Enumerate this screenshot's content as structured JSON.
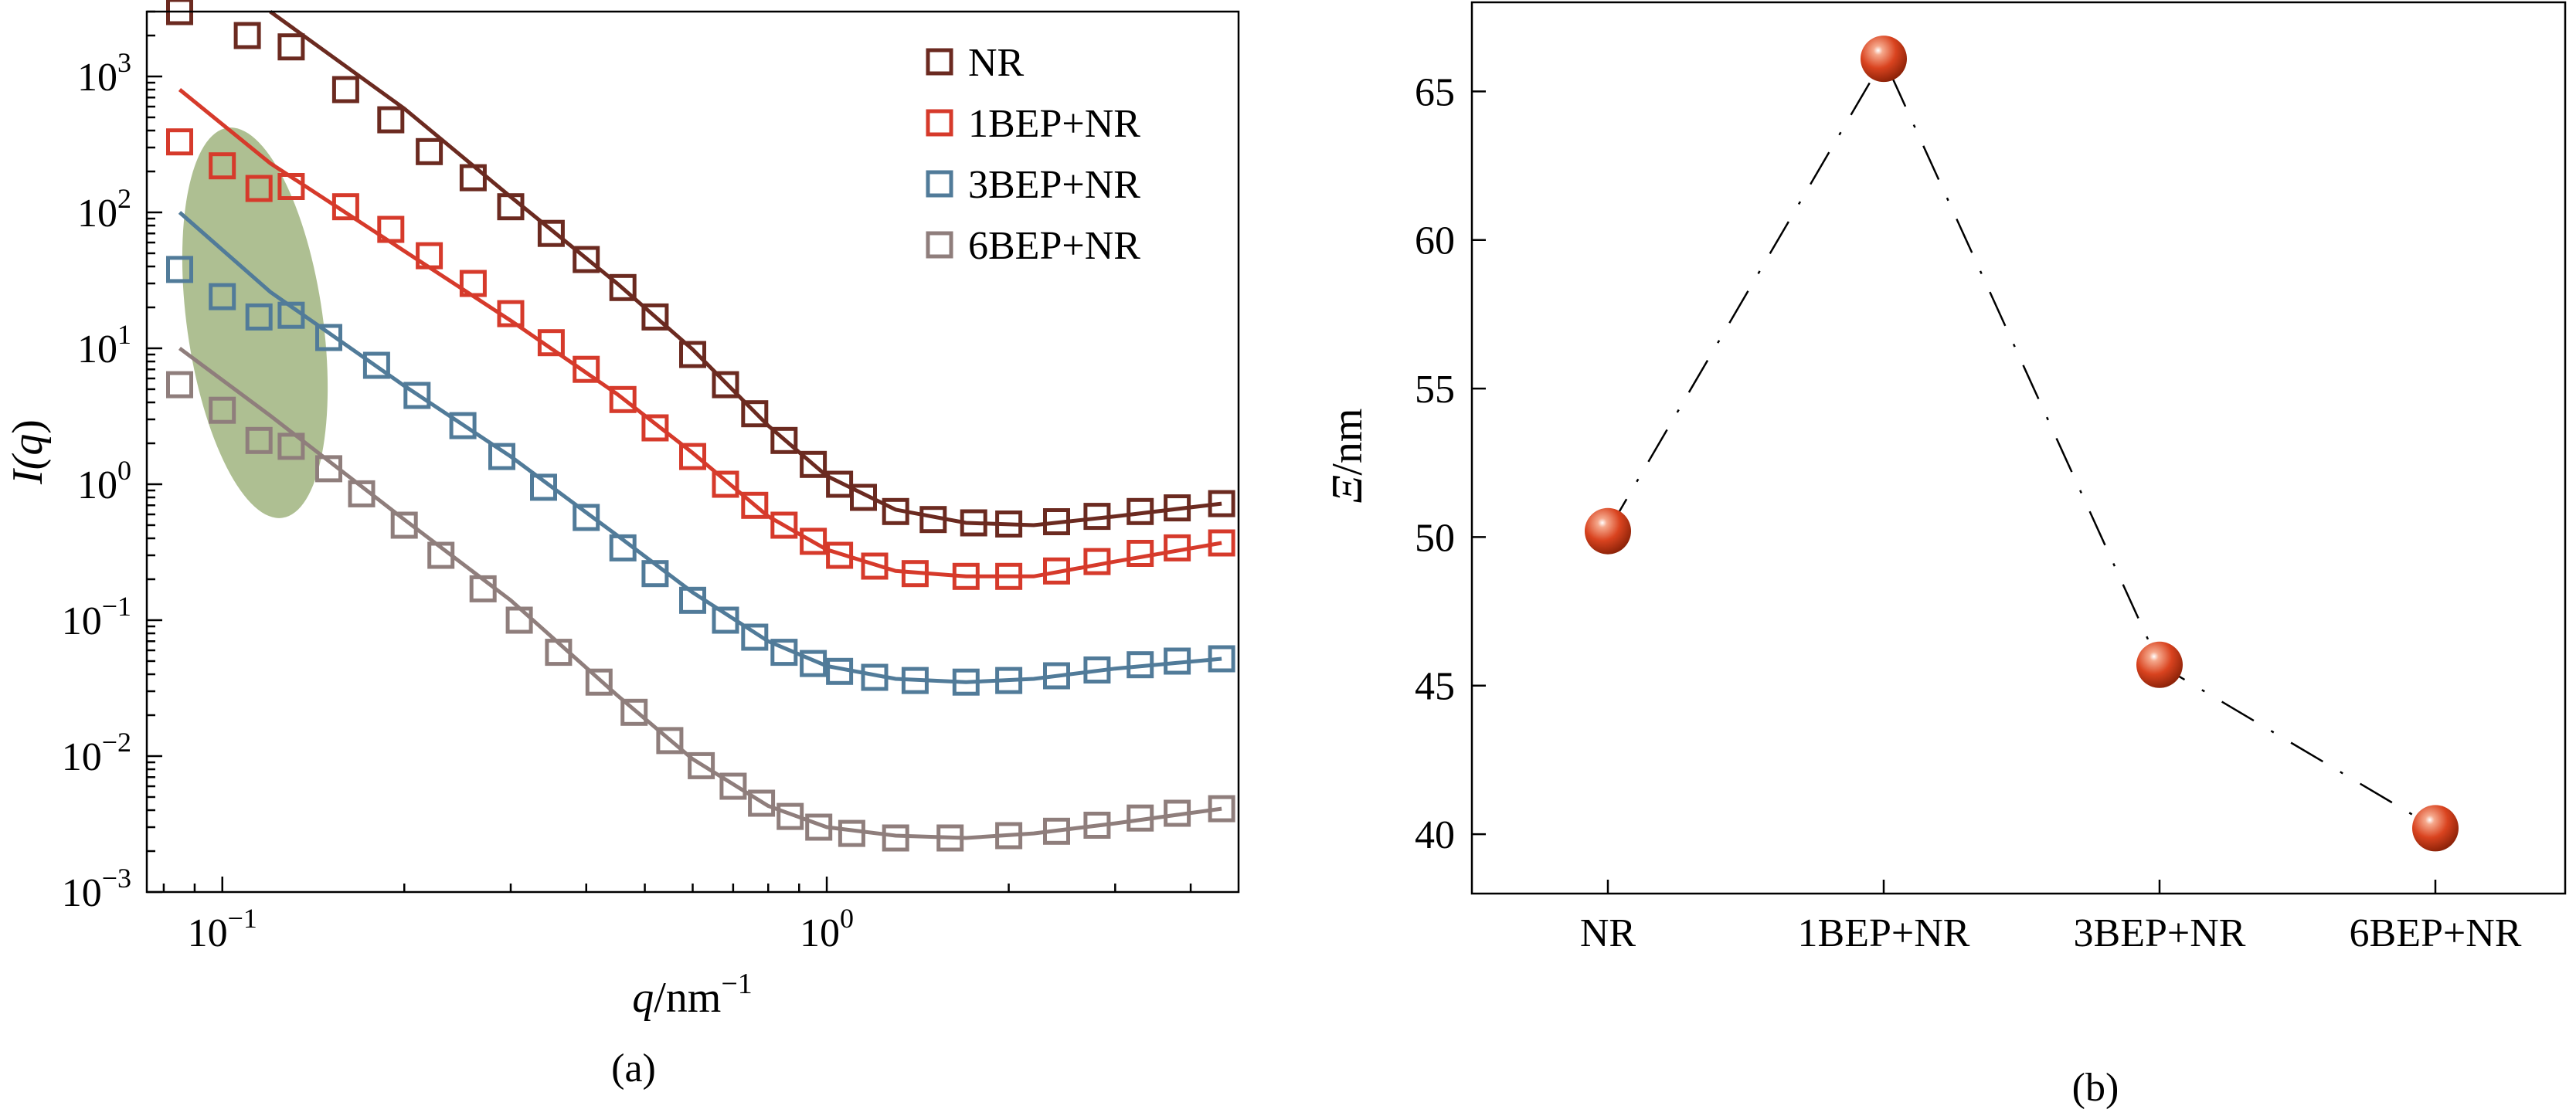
{
  "chart_data": [
    {
      "panel": "(a)",
      "type": "scatter",
      "xscale": "log",
      "yscale": "log",
      "xlabel": {
        "var": "q",
        "unit": "/nm",
        "exp": "−1"
      },
      "ylabel": {
        "prefix": "I(",
        "var": "q",
        "suffix": ")"
      },
      "xlim": [
        0.075,
        4.8
      ],
      "ylim": [
        0.001,
        3000
      ],
      "xticks": [
        {
          "value": 0.1,
          "base": "10",
          "exp": "−1"
        },
        {
          "value": 1,
          "base": "10",
          "exp": "0"
        }
      ],
      "yticks": [
        {
          "value": 1000,
          "base": "10",
          "exp": "3"
        },
        {
          "value": 100,
          "base": "10",
          "exp": "2"
        },
        {
          "value": 10,
          "base": "10",
          "exp": "1"
        },
        {
          "value": 1,
          "base": "10",
          "exp": "0"
        },
        {
          "value": 0.1,
          "base": "10",
          "exp": "−1"
        },
        {
          "value": 0.01,
          "base": "10",
          "exp": "−2"
        },
        {
          "value": 0.001,
          "base": "10",
          "exp": "−3"
        }
      ],
      "legend_position": "top-right",
      "highlight": "shaded ellipse over low-q points (q ≈ 0.085–0.15)",
      "series": [
        {
          "name": "NR",
          "color": "#6b2a20",
          "points": [
            [
              0.085,
              3000
            ],
            [
              0.11,
              2000
            ],
            [
              0.13,
              1650
            ],
            [
              0.16,
              800
            ],
            [
              0.19,
              480
            ],
            [
              0.22,
              280
            ],
            [
              0.26,
              180
            ],
            [
              0.3,
              110
            ],
            [
              0.35,
              70
            ],
            [
              0.4,
              45
            ],
            [
              0.46,
              28
            ],
            [
              0.52,
              17
            ],
            [
              0.6,
              9
            ],
            [
              0.68,
              5.4
            ],
            [
              0.76,
              3.3
            ],
            [
              0.85,
              2.1
            ],
            [
              0.95,
              1.4
            ],
            [
              1.05,
              1.0
            ],
            [
              1.15,
              0.8
            ],
            [
              1.3,
              0.63
            ],
            [
              1.5,
              0.55
            ],
            [
              1.75,
              0.52
            ],
            [
              2.0,
              0.51
            ],
            [
              2.4,
              0.53
            ],
            [
              2.8,
              0.58
            ],
            [
              3.3,
              0.63
            ],
            [
              3.8,
              0.67
            ],
            [
              4.5,
              0.72
            ]
          ],
          "fit": [
            [
              0.12,
              3000
            ],
            [
              0.2,
              580
            ],
            [
              0.3,
              130
            ],
            [
              0.45,
              30
            ],
            [
              0.6,
              9.8
            ],
            [
              0.8,
              2.7
            ],
            [
              1.0,
              1.15
            ],
            [
              1.3,
              0.65
            ],
            [
              1.7,
              0.52
            ],
            [
              2.2,
              0.5
            ],
            [
              3.0,
              0.58
            ],
            [
              4.5,
              0.72
            ]
          ]
        },
        {
          "name": "1BEP+NR",
          "color": "#d63a2b",
          "points": [
            [
              0.085,
              330
            ],
            [
              0.1,
              220
            ],
            [
              0.115,
              150
            ],
            [
              0.13,
              155
            ],
            [
              0.16,
              110
            ],
            [
              0.19,
              75
            ],
            [
              0.22,
              48
            ],
            [
              0.26,
              30
            ],
            [
              0.3,
              18
            ],
            [
              0.35,
              11
            ],
            [
              0.4,
              7
            ],
            [
              0.46,
              4.2
            ],
            [
              0.52,
              2.6
            ],
            [
              0.6,
              1.6
            ],
            [
              0.68,
              1.0
            ],
            [
              0.76,
              0.7
            ],
            [
              0.85,
              0.5
            ],
            [
              0.95,
              0.38
            ],
            [
              1.05,
              0.3
            ],
            [
              1.2,
              0.25
            ],
            [
              1.4,
              0.22
            ],
            [
              1.7,
              0.21
            ],
            [
              2.0,
              0.21
            ],
            [
              2.4,
              0.23
            ],
            [
              2.8,
              0.27
            ],
            [
              3.3,
              0.31
            ],
            [
              3.8,
              0.34
            ],
            [
              4.5,
              0.37
            ]
          ],
          "fit": [
            [
              0.085,
              800
            ],
            [
              0.12,
              230
            ],
            [
              0.2,
              52
            ],
            [
              0.3,
              16
            ],
            [
              0.45,
              4.6
            ],
            [
              0.6,
              1.7
            ],
            [
              0.8,
              0.58
            ],
            [
              1.0,
              0.33
            ],
            [
              1.3,
              0.23
            ],
            [
              1.7,
              0.21
            ],
            [
              2.2,
              0.21
            ],
            [
              3.0,
              0.27
            ],
            [
              4.5,
              0.37
            ]
          ]
        },
        {
          "name": "3BEP+NR",
          "color": "#517b99",
          "points": [
            [
              0.085,
              38
            ],
            [
              0.1,
              24
            ],
            [
              0.115,
              17
            ],
            [
              0.13,
              17.5
            ],
            [
              0.15,
              12
            ],
            [
              0.18,
              7.5
            ],
            [
              0.21,
              4.5
            ],
            [
              0.25,
              2.7
            ],
            [
              0.29,
              1.6
            ],
            [
              0.34,
              0.95
            ],
            [
              0.4,
              0.57
            ],
            [
              0.46,
              0.34
            ],
            [
              0.52,
              0.22
            ],
            [
              0.6,
              0.14
            ],
            [
              0.68,
              0.1
            ],
            [
              0.76,
              0.075
            ],
            [
              0.85,
              0.058
            ],
            [
              0.95,
              0.048
            ],
            [
              1.05,
              0.042
            ],
            [
              1.2,
              0.038
            ],
            [
              1.4,
              0.036
            ],
            [
              1.7,
              0.035
            ],
            [
              2.0,
              0.036
            ],
            [
              2.4,
              0.039
            ],
            [
              2.8,
              0.043
            ],
            [
              3.3,
              0.047
            ],
            [
              3.8,
              0.05
            ],
            [
              4.5,
              0.052
            ]
          ],
          "fit": [
            [
              0.085,
              100
            ],
            [
              0.12,
              26
            ],
            [
              0.2,
              5.3
            ],
            [
              0.3,
              1.6
            ],
            [
              0.45,
              0.42
            ],
            [
              0.6,
              0.16
            ],
            [
              0.8,
              0.07
            ],
            [
              1.0,
              0.046
            ],
            [
              1.3,
              0.037
            ],
            [
              1.7,
              0.035
            ],
            [
              2.2,
              0.037
            ],
            [
              3.0,
              0.044
            ],
            [
              4.5,
              0.052
            ]
          ]
        },
        {
          "name": "6BEP+NR",
          "color": "#8f7e7c",
          "points": [
            [
              0.085,
              5.4
            ],
            [
              0.1,
              3.5
            ],
            [
              0.115,
              2.1
            ],
            [
              0.13,
              1.9
            ],
            [
              0.15,
              1.3
            ],
            [
              0.17,
              0.85
            ],
            [
              0.2,
              0.5
            ],
            [
              0.23,
              0.3
            ],
            [
              0.27,
              0.17
            ],
            [
              0.31,
              0.1
            ],
            [
              0.36,
              0.058
            ],
            [
              0.42,
              0.035
            ],
            [
              0.48,
              0.021
            ],
            [
              0.55,
              0.013
            ],
            [
              0.62,
              0.0085
            ],
            [
              0.7,
              0.006
            ],
            [
              0.78,
              0.0045
            ],
            [
              0.87,
              0.0036
            ],
            [
              0.97,
              0.003
            ],
            [
              1.1,
              0.0027
            ],
            [
              1.3,
              0.0025
            ],
            [
              1.6,
              0.0025
            ],
            [
              2.0,
              0.0026
            ],
            [
              2.4,
              0.0028
            ],
            [
              2.8,
              0.0031
            ],
            [
              3.3,
              0.0035
            ],
            [
              3.8,
              0.0038
            ],
            [
              4.5,
              0.0041
            ]
          ],
          "fit": [
            [
              0.085,
              10
            ],
            [
              0.12,
              3.2
            ],
            [
              0.2,
              0.55
            ],
            [
              0.3,
              0.14
            ],
            [
              0.45,
              0.028
            ],
            [
              0.6,
              0.0095
            ],
            [
              0.8,
              0.0043
            ],
            [
              1.0,
              0.003
            ],
            [
              1.3,
              0.0026
            ],
            [
              1.7,
              0.0025
            ],
            [
              2.2,
              0.0027
            ],
            [
              3.0,
              0.0032
            ],
            [
              4.5,
              0.0041
            ]
          ]
        }
      ]
    },
    {
      "panel": "(b)",
      "type": "line",
      "categories": [
        "NR",
        "1BEP+NR",
        "3BEP+NR",
        "6BEP+NR"
      ],
      "values": [
        50.2,
        66.1,
        45.7,
        40.2
      ],
      "ylabel": {
        "var": "Ξ",
        "unit": "/nm"
      },
      "ylim": [
        38,
        68
      ],
      "yticks": [
        40,
        45,
        50,
        55,
        60,
        65
      ],
      "line_style": "dash-dot",
      "marker": "sphere",
      "marker_color": "#d9431f"
    }
  ]
}
